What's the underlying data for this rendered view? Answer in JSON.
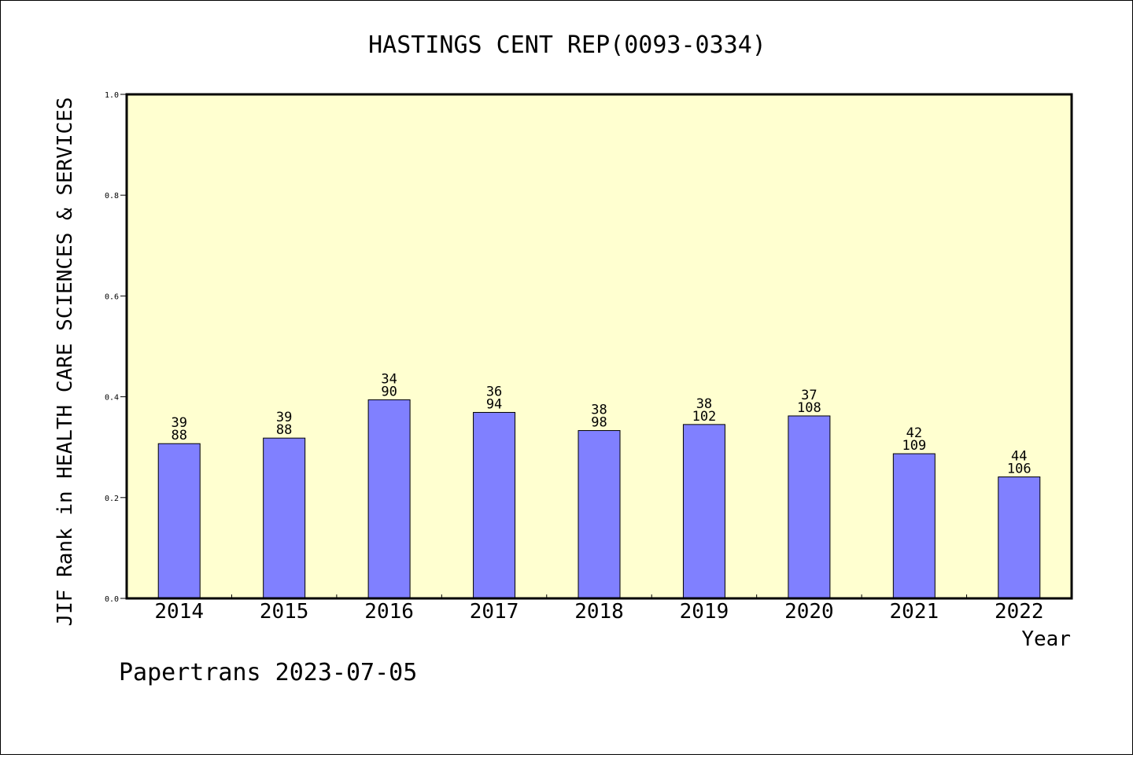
{
  "chart_data": {
    "type": "bar",
    "title": "HASTINGS CENT REP(0093-0334)",
    "xlabel": "Year",
    "ylabel": "JIF Rank in HEALTH CARE SCIENCES & SERVICES",
    "ylim": [
      0,
      1.0
    ],
    "yticks": [
      "0.0",
      "0.2",
      "0.4",
      "0.6",
      "0.8",
      "1.0"
    ],
    "categories": [
      "2014",
      "2015",
      "2016",
      "2017",
      "2018",
      "2019",
      "2020",
      "2021",
      "2022"
    ],
    "values": [
      0.307,
      0.318,
      0.394,
      0.369,
      0.333,
      0.345,
      0.362,
      0.287,
      0.241
    ],
    "ranks": [
      "39",
      "39",
      "34",
      "36",
      "38",
      "38",
      "37",
      "42",
      "44"
    ],
    "totals": [
      "88",
      "88",
      "90",
      "94",
      "98",
      "102",
      "108",
      "109",
      "106"
    ],
    "grid": false,
    "bar_color": "#8080ff",
    "plot_background": "#ffffd0"
  },
  "footer": "Papertrans 2023-07-05"
}
